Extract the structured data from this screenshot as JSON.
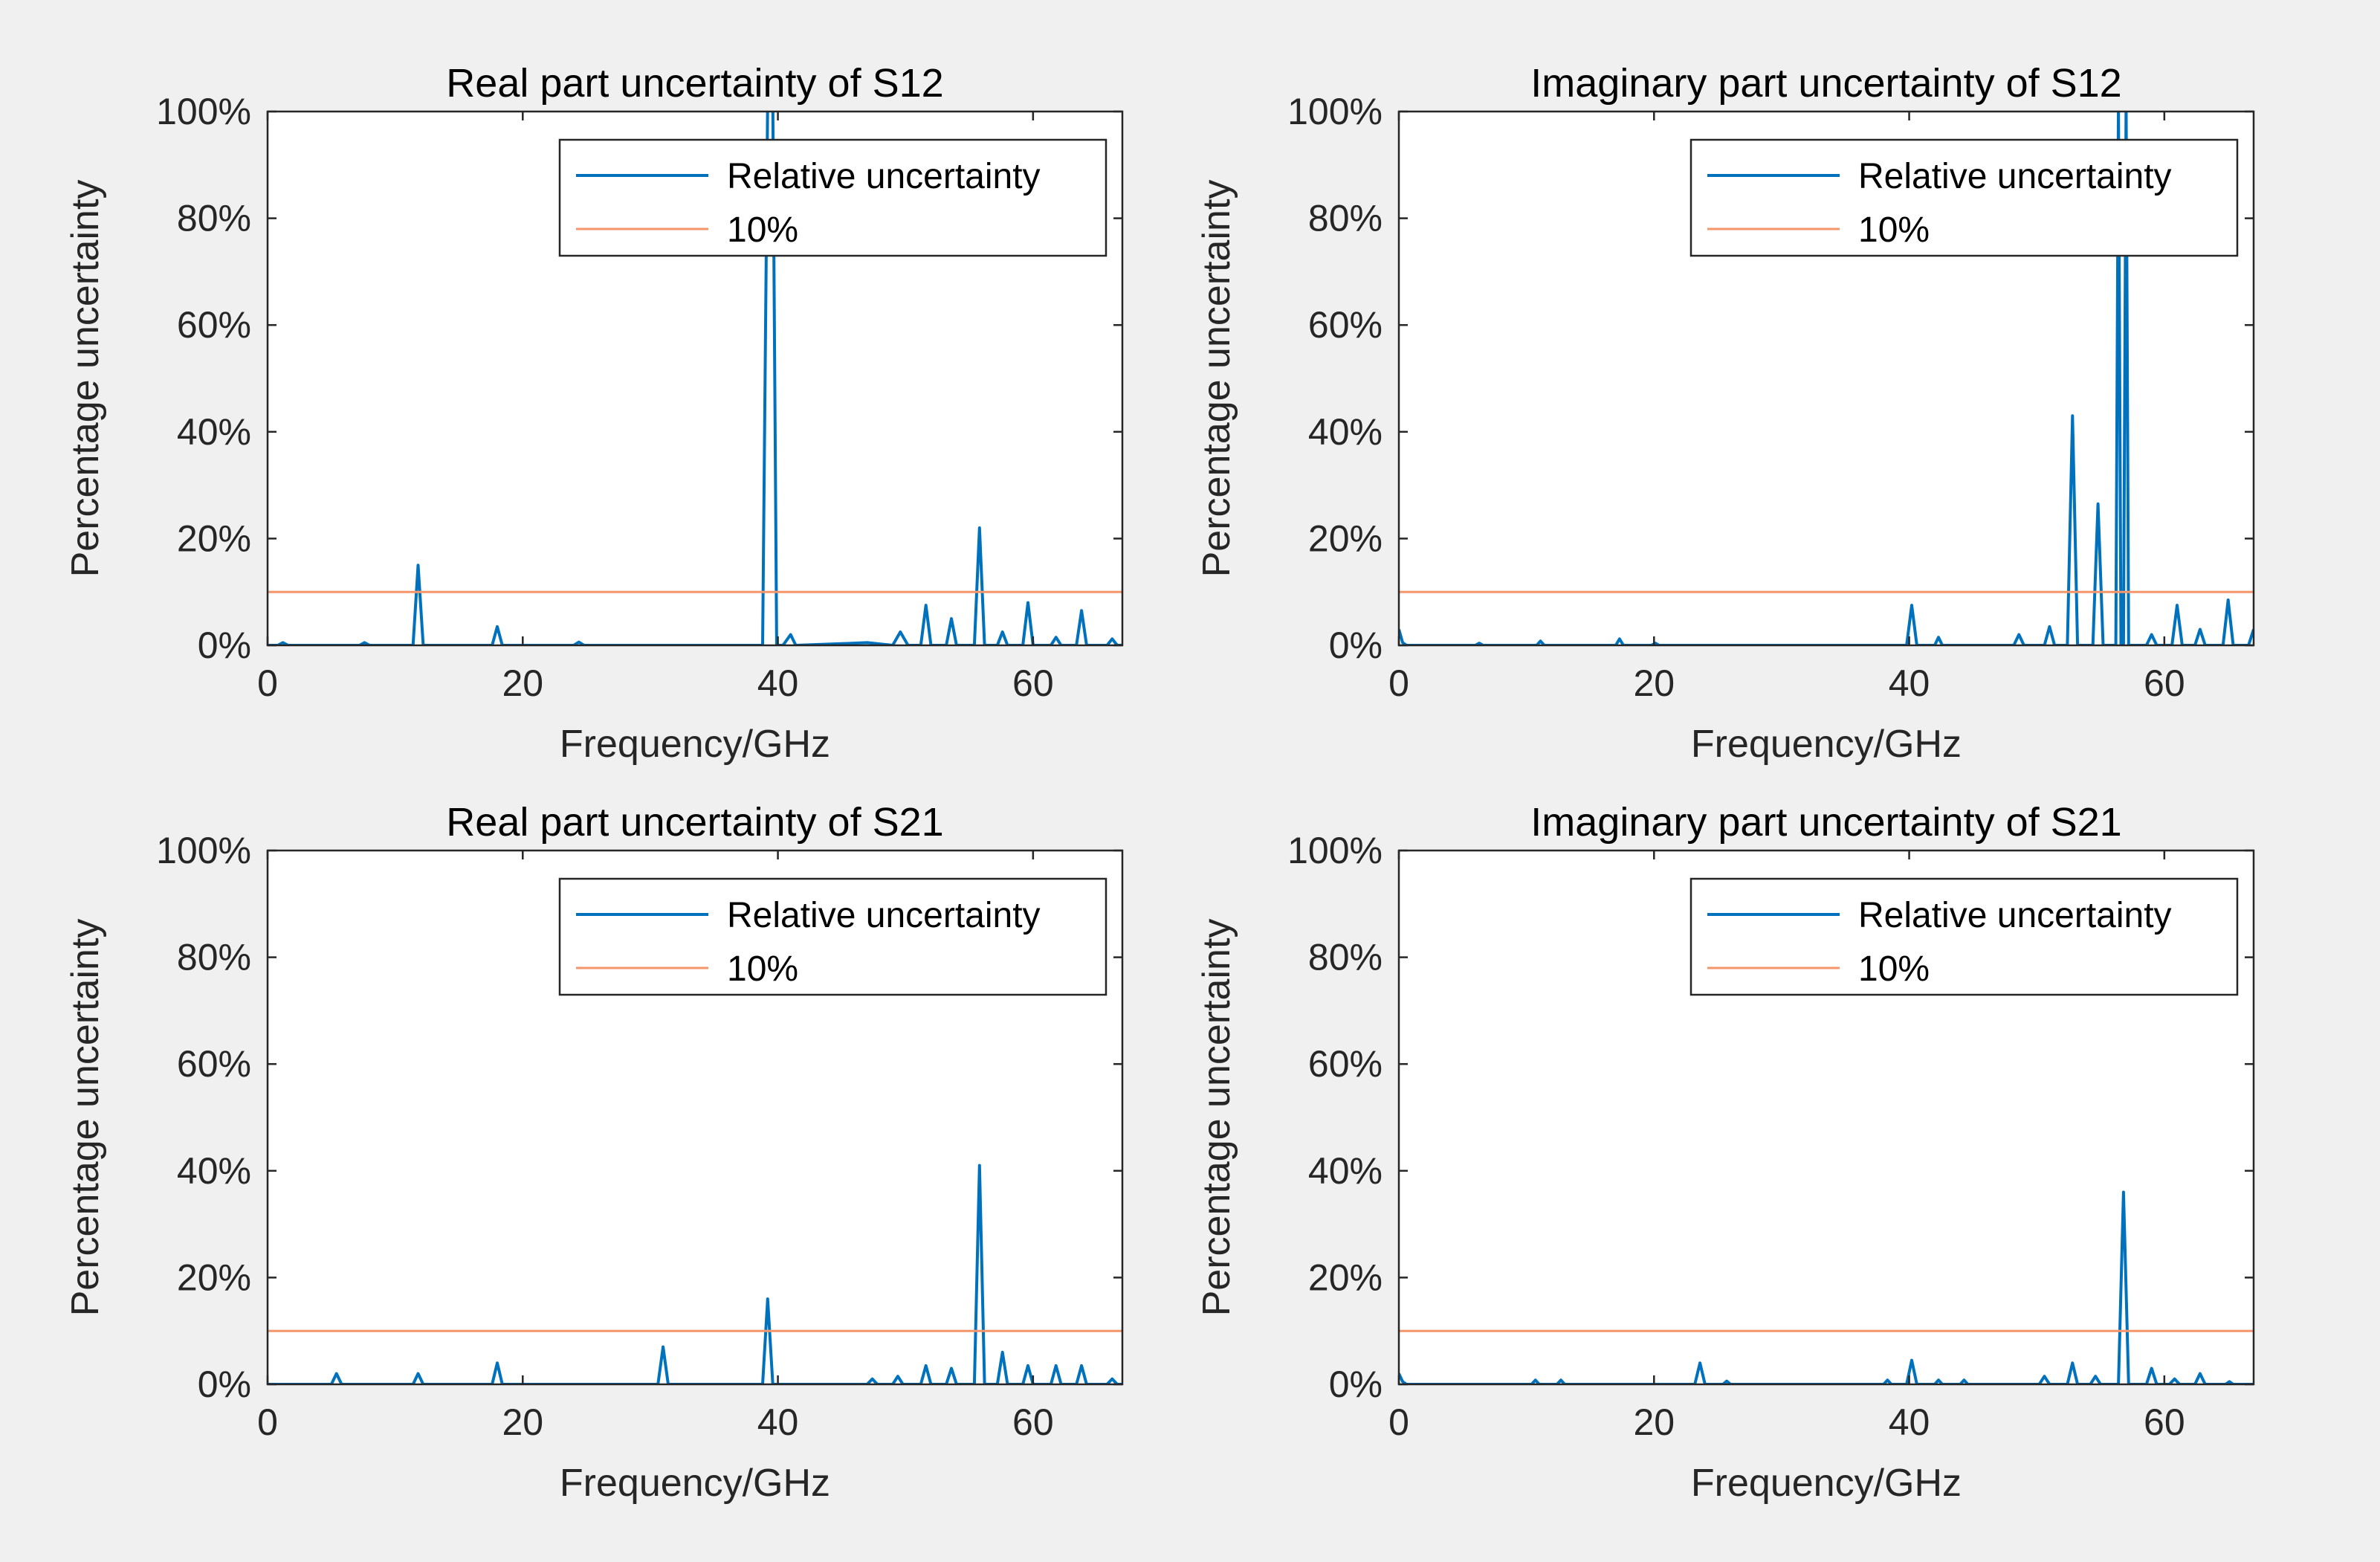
{
  "colors": {
    "figure_background": "#f0f0f0",
    "axes_background": "#ffffff",
    "axis_color": "#262626",
    "series_relative": "#0072bd",
    "series_threshold": "#f4956a"
  },
  "chart_data": [
    {
      "type": "line",
      "title": "Real part uncertainty of S12",
      "xlabel": "Frequency/GHz",
      "ylabel": "Percentage uncertainty",
      "xlim": [
        0,
        67
      ],
      "ylim": [
        0,
        100
      ],
      "xticks": [
        0,
        20,
        40,
        60
      ],
      "xtick_labels": [
        "0",
        "20",
        "40",
        "60"
      ],
      "yticks": [
        0,
        20,
        40,
        60,
        80,
        100
      ],
      "ytick_labels": [
        "0%",
        "20%",
        "40%",
        "60%",
        "80%",
        "100%"
      ],
      "legend": [
        "Relative uncertainty",
        "10%"
      ],
      "legend_position": "top-right",
      "threshold": 10,
      "series": [
        {
          "name": "Relative uncertainty",
          "x": [
            0,
            0.8,
            1.2,
            1.6,
            7.2,
            7.6,
            8.0,
            11.4,
            11.8,
            12.2,
            17.6,
            18.0,
            18.4,
            24.0,
            24.4,
            24.8,
            38.8,
            39.2,
            39.6,
            39.9,
            40.4,
            41.0,
            41.4,
            45.0,
            47.0,
            49.0,
            49.6,
            50.2,
            51.2,
            51.6,
            52.0,
            53.2,
            53.6,
            54.0,
            55.4,
            55.8,
            56.2,
            57.2,
            57.6,
            58.0,
            59.2,
            59.6,
            60.0,
            61.4,
            61.8,
            62.2,
            63.4,
            63.8,
            64.2,
            65.8,
            66.2,
            66.6,
            67
          ],
          "values": [
            0,
            0,
            0.5,
            0,
            0,
            0.5,
            0,
            0,
            15,
            0,
            0,
            3.5,
            0,
            0,
            0.6,
            0,
            0,
            102,
            102,
            0,
            0,
            2,
            0,
            0.3,
            0.5,
            0,
            2.5,
            0,
            0,
            7.5,
            0,
            0,
            5,
            0,
            0,
            22,
            0,
            0,
            2.5,
            0,
            0,
            8,
            0,
            0,
            1.5,
            0,
            0,
            6.5,
            0,
            0,
            1.2,
            0,
            0
          ]
        },
        {
          "name": "10%",
          "x": [
            0,
            67
          ],
          "values": [
            10,
            10
          ]
        }
      ]
    },
    {
      "type": "line",
      "title": "Imaginary part uncertainty of S12",
      "xlabel": "Frequency/GHz",
      "ylabel": "Percentage uncertainty",
      "xlim": [
        0,
        67
      ],
      "ylim": [
        0,
        100
      ],
      "xticks": [
        0,
        20,
        40,
        60
      ],
      "xtick_labels": [
        "0",
        "20",
        "40",
        "60"
      ],
      "yticks": [
        0,
        20,
        40,
        60,
        80,
        100
      ],
      "ytick_labels": [
        "0%",
        "20%",
        "40%",
        "60%",
        "80%",
        "100%"
      ],
      "legend": [
        "Relative uncertainty",
        "10%"
      ],
      "legend_position": "top-right",
      "threshold": 10,
      "series": [
        {
          "name": "Relative uncertainty",
          "x": [
            0,
            0.3,
            0.6,
            6.0,
            6.3,
            6.6,
            10.8,
            11.1,
            11.4,
            17.0,
            17.3,
            17.6,
            19.8,
            20.1,
            20.4,
            39.8,
            40.2,
            40.6,
            42.0,
            42.3,
            42.6,
            48.2,
            48.6,
            49.0,
            50.6,
            51.0,
            51.4,
            52.4,
            52.8,
            53.2,
            54.4,
            54.8,
            55.2,
            56.2,
            56.4,
            56.6,
            56.8,
            57.0,
            57.2,
            58.6,
            59.0,
            59.4,
            60.6,
            61.0,
            61.4,
            62.4,
            62.8,
            63.2,
            64.6,
            65.0,
            65.4,
            66.6,
            67
          ],
          "values": [
            3,
            0.5,
            0,
            0,
            0.4,
            0,
            0,
            0.8,
            0,
            0,
            1.2,
            0,
            0,
            0.4,
            0,
            0,
            7.5,
            0,
            0,
            1.5,
            0,
            0,
            2,
            0,
            0,
            3.5,
            0,
            0,
            43,
            0,
            0,
            26.5,
            0,
            0,
            102,
            0,
            0,
            102,
            0,
            0,
            2,
            0,
            0,
            7.5,
            0,
            0,
            3,
            0,
            0,
            8.5,
            0,
            0,
            3
          ]
        },
        {
          "name": "10%",
          "x": [
            0,
            67
          ],
          "values": [
            10,
            10
          ]
        }
      ]
    },
    {
      "type": "line",
      "title": "Real part uncertainty of S21",
      "xlabel": "Frequency/GHz",
      "ylabel": "Percentage uncertainty",
      "xlim": [
        0,
        67
      ],
      "ylim": [
        0,
        100
      ],
      "xticks": [
        0,
        20,
        40,
        60
      ],
      "xtick_labels": [
        "0",
        "20",
        "40",
        "60"
      ],
      "yticks": [
        0,
        20,
        40,
        60,
        80,
        100
      ],
      "ytick_labels": [
        "0%",
        "20%",
        "40%",
        "60%",
        "80%",
        "100%"
      ],
      "legend": [
        "Relative uncertainty",
        "10%"
      ],
      "legend_position": "top-right",
      "threshold": 10,
      "series": [
        {
          "name": "Relative uncertainty",
          "x": [
            0,
            5.0,
            5.4,
            5.8,
            11.4,
            11.8,
            12.2,
            17.6,
            18.0,
            18.4,
            30.6,
            31.0,
            31.4,
            38.8,
            39.2,
            39.6,
            47.0,
            47.4,
            47.8,
            49.0,
            49.4,
            49.8,
            51.2,
            51.6,
            52.0,
            53.2,
            53.6,
            54.0,
            55.4,
            55.8,
            56.2,
            57.2,
            57.6,
            58.0,
            59.2,
            59.6,
            60.0,
            61.4,
            61.8,
            62.2,
            63.4,
            63.8,
            64.2,
            65.8,
            66.2,
            66.6,
            67
          ],
          "values": [
            0,
            0,
            2,
            0,
            0,
            2,
            0,
            0,
            4,
            0,
            0,
            7,
            0,
            0,
            16,
            0,
            0,
            1,
            0,
            0,
            1.5,
            0,
            0,
            3.5,
            0,
            0,
            3,
            0,
            0,
            41,
            0,
            0,
            6,
            0,
            0,
            3.5,
            0,
            0,
            3.5,
            0,
            0,
            3.5,
            0,
            0,
            1,
            0,
            0
          ]
        },
        {
          "name": "10%",
          "x": [
            0,
            67
          ],
          "values": [
            10,
            10
          ]
        }
      ]
    },
    {
      "type": "line",
      "title": "Imaginary part uncertainty of S21",
      "xlabel": "Frequency/GHz",
      "ylabel": "Percentage uncertainty",
      "xlim": [
        0,
        67
      ],
      "ylim": [
        0,
        100
      ],
      "xticks": [
        0,
        20,
        40,
        60
      ],
      "xtick_labels": [
        "0",
        "20",
        "40",
        "60"
      ],
      "yticks": [
        0,
        20,
        40,
        60,
        80,
        100
      ],
      "ytick_labels": [
        "0%",
        "20%",
        "40%",
        "60%",
        "80%",
        "100%"
      ],
      "legend": [
        "Relative uncertainty",
        "10%"
      ],
      "legend_position": "top-right",
      "threshold": 10,
      "series": [
        {
          "name": "Relative uncertainty",
          "x": [
            0,
            0.3,
            0.6,
            10.4,
            10.7,
            11.0,
            12.4,
            12.7,
            13.0,
            23.2,
            23.6,
            24.0,
            25.4,
            25.7,
            26.0,
            38.0,
            38.3,
            38.6,
            39.8,
            40.2,
            40.6,
            42.0,
            42.3,
            42.6,
            44.0,
            44.3,
            44.6,
            50.2,
            50.6,
            51.0,
            52.4,
            52.8,
            53.2,
            54.2,
            54.6,
            55.0,
            56.4,
            56.8,
            57.2,
            58.6,
            59.0,
            59.4,
            60.4,
            60.8,
            61.2,
            62.4,
            62.8,
            63.2,
            64.8,
            65.1,
            65.4,
            67
          ],
          "values": [
            2,
            0.5,
            0,
            0,
            0.8,
            0,
            0,
            0.8,
            0,
            0,
            4,
            0,
            0,
            0.6,
            0,
            0,
            0.8,
            0,
            0,
            4.5,
            0,
            0,
            0.8,
            0,
            0,
            0.8,
            0,
            0,
            1.5,
            0,
            0,
            4,
            0,
            0,
            1.5,
            0,
            0,
            36,
            0,
            0,
            3,
            0,
            0,
            1,
            0,
            0,
            2,
            0,
            0,
            0.5,
            0,
            0
          ]
        },
        {
          "name": "10%",
          "x": [
            0,
            67
          ],
          "values": [
            10,
            10
          ]
        }
      ]
    }
  ]
}
